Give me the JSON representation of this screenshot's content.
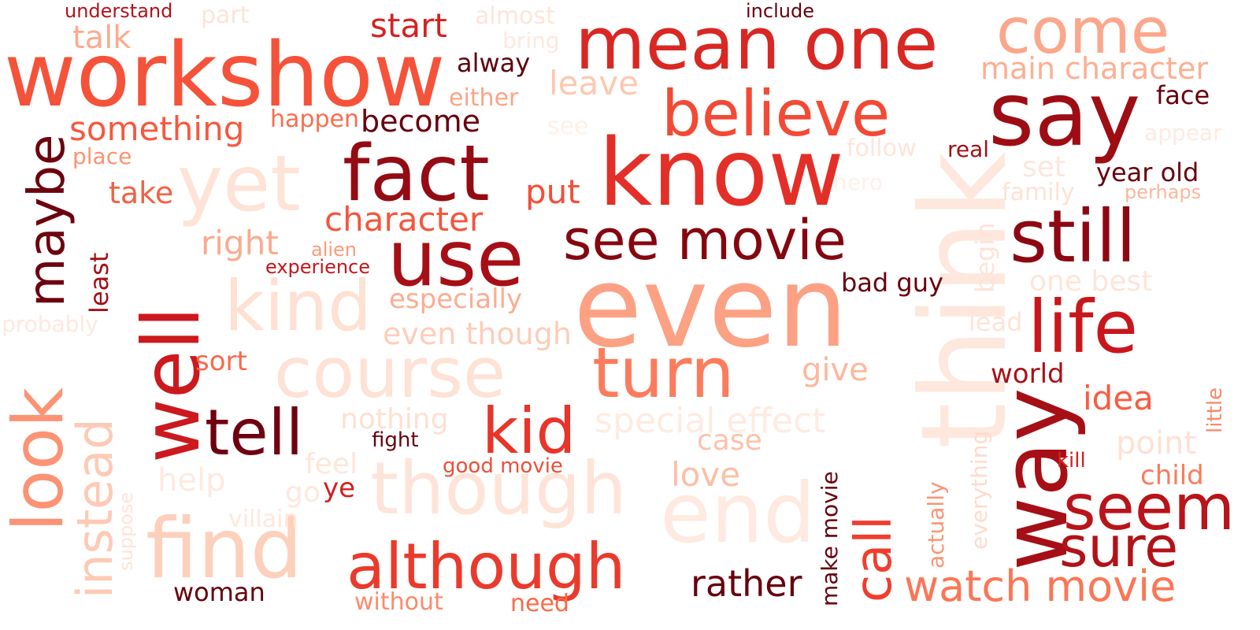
{
  "words": [
    {
      "text": "workshow",
      "color": "#f5523a"
    },
    {
      "text": "mean one",
      "color": "#d92723"
    },
    {
      "text": "come",
      "color": "#fca78b"
    },
    {
      "text": "say",
      "color": "#9e0d14"
    },
    {
      "text": "believe",
      "color": "#f24a35"
    },
    {
      "text": "know",
      "color": "#e32f27"
    },
    {
      "text": "fact",
      "color": "#940b13"
    },
    {
      "text": "yet",
      "color": "#fee3d6"
    },
    {
      "text": "use",
      "color": "#a60f15"
    },
    {
      "text": "see movie",
      "color": "#85060f"
    },
    {
      "text": "still",
      "color": "#8c0913"
    },
    {
      "text": "even",
      "color": "#fca183"
    },
    {
      "text": "think",
      "color": "#fee8de"
    },
    {
      "text": "kind",
      "color": "#fee1d3"
    },
    {
      "text": "course",
      "color": "#fee2d5"
    },
    {
      "text": "turn",
      "color": "#fb7c5c"
    },
    {
      "text": "life",
      "color": "#c8171c"
    },
    {
      "text": "way",
      "color": "#a50f15"
    },
    {
      "text": "well",
      "color": "#cc191e"
    },
    {
      "text": "look",
      "color": "#fc9374"
    },
    {
      "text": "tell",
      "color": "#6f0010"
    },
    {
      "text": "kid",
      "color": "#e83429"
    },
    {
      "text": "though",
      "color": "#fee4d8"
    },
    {
      "text": "end",
      "color": "#feeae1"
    },
    {
      "text": "find",
      "color": "#fdd0bc"
    },
    {
      "text": "although",
      "color": "#ea3a2c"
    },
    {
      "text": "seem",
      "color": "#b81419"
    },
    {
      "text": "sure",
      "color": "#b11218"
    },
    {
      "text": "watch movie",
      "color": "#fb7656"
    },
    {
      "text": "call",
      "color": "#f03d2d"
    },
    {
      "text": "rather",
      "color": "#67000d"
    },
    {
      "text": "maybe",
      "color": "#6d010e"
    },
    {
      "text": "instead",
      "color": "#fdcab5"
    },
    {
      "text": "special effect",
      "color": "#feebe2"
    },
    {
      "text": "character",
      "color": "#f5553c"
    },
    {
      "text": "something",
      "color": "#f6583e"
    },
    {
      "text": "start",
      "color": "#d52221"
    },
    {
      "text": "talk",
      "color": "#fcab8f"
    },
    {
      "text": "become",
      "color": "#67000d"
    },
    {
      "text": "right",
      "color": "#fcaa8d"
    },
    {
      "text": "take",
      "color": "#f16242"
    },
    {
      "text": "put",
      "color": "#f44d37"
    },
    {
      "text": "main character",
      "color": "#fcaf93"
    },
    {
      "text": "leave",
      "color": "#fdc8b0"
    },
    {
      "text": "alway",
      "color": "#5f000c"
    },
    {
      "text": "either",
      "color": "#fca486"
    },
    {
      "text": "happen",
      "color": "#f96e4e"
    },
    {
      "text": "face",
      "color": "#67000d"
    },
    {
      "text": "year old",
      "color": "#67000d"
    },
    {
      "text": "especially",
      "color": "#fcad90"
    },
    {
      "text": "even though",
      "color": "#fdcdb9"
    },
    {
      "text": "give",
      "color": "#fcb89e"
    },
    {
      "text": "idea",
      "color": "#f85d42"
    },
    {
      "text": "world",
      "color": "#a91016"
    },
    {
      "text": "point",
      "color": "#fee1d4"
    },
    {
      "text": "child",
      "color": "#fb7b5b"
    },
    {
      "text": "love",
      "color": "#fcbfa7"
    },
    {
      "text": "case",
      "color": "#fcc2aa"
    },
    {
      "text": "nothing",
      "color": "#fee0d2"
    },
    {
      "text": "bad guy",
      "color": "#67000d"
    },
    {
      "text": "one best",
      "color": "#fee5d9"
    },
    {
      "text": "lead",
      "color": "#fee3d7"
    },
    {
      "text": "sort",
      "color": "#f8694a"
    },
    {
      "text": "help",
      "color": "#feeae0"
    },
    {
      "text": "feel",
      "color": "#fee6da"
    },
    {
      "text": "go",
      "color": "#fee8dd"
    },
    {
      "text": "ye",
      "color": "#d21f20"
    },
    {
      "text": "villain",
      "color": "#fee8dc"
    },
    {
      "text": "woman",
      "color": "#67000d"
    },
    {
      "text": "without",
      "color": "#fc8a6a"
    },
    {
      "text": "need",
      "color": "#fb6a4a"
    },
    {
      "text": "fight",
      "color": "#67000d"
    },
    {
      "text": "good movie",
      "color": "#f04d37"
    },
    {
      "text": "kill",
      "color": "#d42020"
    },
    {
      "text": "alien",
      "color": "#fc9b7c"
    },
    {
      "text": "experience",
      "color": "#c4161c"
    },
    {
      "text": "place",
      "color": "#fc9272"
    },
    {
      "text": "understand",
      "color": "#b21218"
    },
    {
      "text": "part",
      "color": "#fee3d7"
    },
    {
      "text": "almost",
      "color": "#fee5d9"
    },
    {
      "text": "bring",
      "color": "#fee8de"
    },
    {
      "text": "include",
      "color": "#67000d"
    },
    {
      "text": "see",
      "color": "#fff0e8"
    },
    {
      "text": "follow",
      "color": "#fee5da"
    },
    {
      "text": "real",
      "color": "#a30f15"
    },
    {
      "text": "appear",
      "color": "#feeae1"
    },
    {
      "text": "set",
      "color": "#fee6da"
    },
    {
      "text": "hero",
      "color": "#fff0e9"
    },
    {
      "text": "family",
      "color": "#fee2d5"
    },
    {
      "text": "perhaps",
      "color": "#fcb79c"
    },
    {
      "text": "probably",
      "color": "#fee8de"
    },
    {
      "text": "begin",
      "color": "#fee3d7"
    },
    {
      "text": "least",
      "color": "#a60f15"
    },
    {
      "text": "suppose",
      "color": "#fee4d8"
    },
    {
      "text": "make movie",
      "color": "#67000d"
    },
    {
      "text": "actually",
      "color": "#fc9474"
    },
    {
      "text": "everything",
      "color": "#fedbcc"
    },
    {
      "text": "little",
      "color": "#fc8767"
    }
  ]
}
